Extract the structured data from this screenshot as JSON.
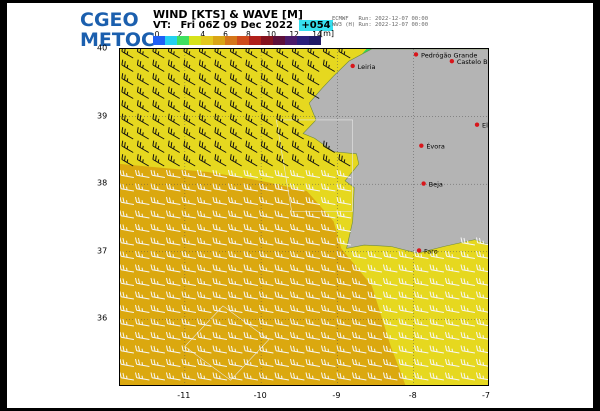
{
  "header": {
    "logo_line1": "CGEO",
    "logo_line2": "METOC",
    "title": "WIND [KTS] & WAVE [M]",
    "vt_prefix": "VT:",
    "vt_time": "Fri 06Z 09 Dec 2022",
    "forecast_hour": "+054",
    "run_line1": "ECMWF   Run: 2022-12-07 00:00",
    "run_line2": "WW3 (H) Run: 2022-12-07 00:00"
  },
  "colorbar": {
    "ticks": [
      "0",
      "2",
      "4",
      "6",
      "8",
      "10",
      "12",
      "14"
    ],
    "unit": "[m]",
    "colors": [
      "#1f5ff5",
      "#25d0f0",
      "#3fe060",
      "#d7e21a",
      "#e3c81e",
      "#d9a516",
      "#d5761a",
      "#cf4a1c",
      "#b0201a",
      "#85121e",
      "#5d0f3b",
      "#4a1a6b",
      "#2a1f7a",
      "#201a66"
    ]
  },
  "map": {
    "x_ticks": [
      "-11",
      "-10",
      "-9",
      "-8",
      "-7"
    ],
    "y_ticks": [
      "40",
      "39",
      "38",
      "37",
      "36"
    ],
    "colors": {
      "land": "#b4b4b4",
      "sea_low": "#e6d81f",
      "sea_mid": "#dba80f",
      "sea_high": "#2ed65a"
    },
    "cities": [
      {
        "name": "Pedrógão Grande",
        "lon": -7.97,
        "lat": 39.92
      },
      {
        "name": "Leiria",
        "lon": -8.8,
        "lat": 39.75
      },
      {
        "name": "Castelo Branco",
        "lon": -7.5,
        "lat": 39.82
      },
      {
        "name": "Elvas",
        "lon": -7.17,
        "lat": 38.88
      },
      {
        "name": "Évora",
        "lon": -7.9,
        "lat": 38.57
      },
      {
        "name": "Beja",
        "lon": -7.87,
        "lat": 38.01
      },
      {
        "name": "Faro",
        "lon": -7.93,
        "lat": 37.02
      }
    ]
  }
}
